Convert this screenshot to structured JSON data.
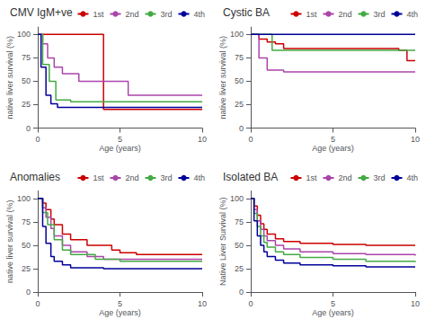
{
  "chart_data": [
    {
      "type": "step",
      "title": "CMV IgM+ve",
      "xlabel": "Age (years)",
      "ylabel": "native liver survival (%)",
      "xlim": [
        0,
        10
      ],
      "ylim": [
        0,
        108
      ],
      "xticks": [
        0,
        5,
        10
      ],
      "yticks": [
        0,
        25,
        50,
        75,
        100
      ],
      "grid": false,
      "legend": "upper right",
      "series": [
        {
          "name": "1st",
          "color": "#cc0000",
          "x": [
            0,
            4,
            4,
            10
          ],
          "values": [
            100,
            100,
            20,
            20
          ]
        },
        {
          "name": "2nd",
          "color": "#aa44aa",
          "x": [
            0,
            0.3,
            0.6,
            1.0,
            1.5,
            2.5,
            4.5,
            5.5,
            10
          ],
          "values": [
            100,
            90,
            75,
            65,
            58,
            50,
            50,
            35,
            35
          ]
        },
        {
          "name": "3rd",
          "color": "#44aa44",
          "x": [
            0,
            0.3,
            0.7,
            1.1,
            2.0,
            10
          ],
          "values": [
            100,
            68,
            50,
            30,
            28,
            28
          ]
        },
        {
          "name": "4th",
          "color": "#000099",
          "x": [
            0,
            0.2,
            0.5,
            0.8,
            1.2,
            10
          ],
          "values": [
            100,
            65,
            35,
            26,
            22,
            22
          ]
        }
      ]
    },
    {
      "type": "step",
      "title": "Cystic BA",
      "xlabel": "Age (years)",
      "ylabel": "native liver survival (%)",
      "xlim": [
        0,
        10
      ],
      "ylim": [
        0,
        108
      ],
      "xticks": [
        0,
        5,
        10
      ],
      "yticks": [
        0,
        25,
        50,
        75,
        100
      ],
      "grid": false,
      "legend": "upper right",
      "series": [
        {
          "name": "1st",
          "color": "#cc0000",
          "x": [
            0,
            0.5,
            1.0,
            1.5,
            2.0,
            9.0,
            9.5,
            10
          ],
          "values": [
            100,
            95,
            92,
            90,
            85,
            83,
            72,
            72
          ]
        },
        {
          "name": "2nd",
          "color": "#aa44aa",
          "x": [
            0,
            0.5,
            1.0,
            2.0,
            10
          ],
          "values": [
            100,
            75,
            62,
            60,
            60
          ]
        },
        {
          "name": "3rd",
          "color": "#44aa44",
          "x": [
            0,
            1.0,
            1.3,
            2.0,
            10
          ],
          "values": [
            100,
            100,
            83,
            83,
            83
          ]
        },
        {
          "name": "4th",
          "color": "#000099",
          "x": [
            0,
            0.5,
            1.0,
            1.5,
            10
          ],
          "values": [
            100,
            100,
            100,
            100,
            100
          ]
        }
      ]
    },
    {
      "type": "step",
      "title": "Anomalies",
      "xlabel": "Age (years)",
      "ylabel": "native liver survival (%)",
      "xlim": [
        0,
        10
      ],
      "ylim": [
        0,
        108
      ],
      "xticks": [
        0,
        5,
        10
      ],
      "yticks": [
        0,
        25,
        50,
        75,
        100
      ],
      "grid": false,
      "legend": "upper right",
      "series": [
        {
          "name": "1st",
          "color": "#cc0000",
          "x": [
            0,
            0.3,
            0.5,
            0.8,
            1.0,
            1.5,
            2.0,
            3.0,
            4.5,
            5.0,
            6.0,
            10
          ],
          "values": [
            100,
            95,
            88,
            78,
            72,
            62,
            56,
            50,
            45,
            42,
            40,
            40
          ]
        },
        {
          "name": "2nd",
          "color": "#aa44aa",
          "x": [
            0,
            0.3,
            0.5,
            0.8,
            1.0,
            1.5,
            2.0,
            3.0,
            4.0,
            10
          ],
          "values": [
            100,
            90,
            80,
            68,
            60,
            50,
            43,
            38,
            35,
            35
          ]
        },
        {
          "name": "3rd",
          "color": "#44aa44",
          "x": [
            0,
            0.3,
            0.6,
            1.0,
            1.5,
            2.0,
            3.5,
            5.0,
            10
          ],
          "values": [
            100,
            85,
            72,
            56,
            45,
            40,
            35,
            33,
            33
          ]
        },
        {
          "name": "4th",
          "color": "#000099",
          "x": [
            0,
            0.3,
            0.5,
            0.8,
            1.0,
            1.5,
            2.0,
            4.0,
            10
          ],
          "values": [
            100,
            70,
            52,
            38,
            33,
            29,
            26,
            25,
            25
          ]
        }
      ]
    },
    {
      "type": "step",
      "title": "Isolated BA",
      "xlabel": "Age (years)",
      "ylabel": "Native Liver Survival (%)",
      "xlim": [
        0,
        10
      ],
      "ylim": [
        0,
        108
      ],
      "xticks": [
        0,
        5,
        10
      ],
      "yticks": [
        0,
        25,
        50,
        75,
        100
      ],
      "grid": false,
      "legend": "upper right",
      "series": [
        {
          "name": "1st",
          "color": "#cc0000",
          "x": [
            0,
            0.2,
            0.4,
            0.6,
            0.8,
            1.0,
            1.5,
            2.0,
            3.0,
            5.0,
            7.0,
            10
          ],
          "values": [
            100,
            92,
            82,
            73,
            67,
            62,
            57,
            54,
            52,
            51,
            50,
            50
          ]
        },
        {
          "name": "2nd",
          "color": "#aa44aa",
          "x": [
            0,
            0.2,
            0.4,
            0.6,
            0.8,
            1.0,
            1.5,
            2.0,
            3.0,
            5.0,
            7.0,
            10
          ],
          "values": [
            100,
            88,
            76,
            67,
            60,
            55,
            50,
            46,
            43,
            41,
            40,
            39
          ]
        },
        {
          "name": "3rd",
          "color": "#44aa44",
          "x": [
            0,
            0.2,
            0.4,
            0.6,
            0.8,
            1.0,
            1.5,
            2.0,
            3.0,
            5.0,
            7.0,
            10
          ],
          "values": [
            100,
            84,
            70,
            60,
            53,
            48,
            43,
            40,
            37,
            35,
            33,
            32
          ]
        },
        {
          "name": "4th",
          "color": "#000099",
          "x": [
            0,
            0.2,
            0.4,
            0.6,
            0.8,
            1.0,
            1.5,
            2.0,
            3.0,
            5.0,
            7.0,
            10
          ],
          "values": [
            100,
            76,
            60,
            50,
            43,
            38,
            34,
            31,
            29,
            28,
            27,
            27
          ]
        }
      ]
    }
  ]
}
